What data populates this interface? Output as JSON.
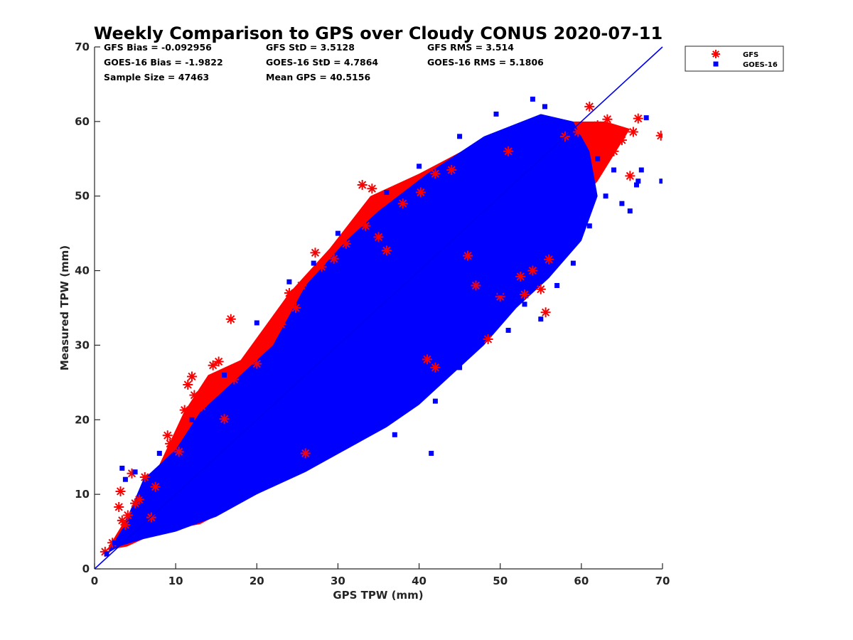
{
  "chart_data": {
    "type": "scatter",
    "title": "Weekly Comparison to GPS over Cloudy CONUS 2020-07-11",
    "xlabel": "GPS TPW (mm)",
    "ylabel": "Measured TPW (mm)",
    "xlim": [
      0,
      70
    ],
    "ylim": [
      0,
      70
    ],
    "x_ticks": [
      "0",
      "10",
      "20",
      "30",
      "40",
      "50",
      "60",
      "70"
    ],
    "y_ticks": [
      "0",
      "10",
      "20",
      "30",
      "40",
      "50",
      "60",
      "70"
    ],
    "grid": false,
    "legend_position": "outside-top-right",
    "reference_line": {
      "label": "",
      "x": [
        0,
        70
      ],
      "y": [
        0,
        70
      ],
      "color": "#0000ee"
    },
    "stats": [
      [
        "GFS Bias = -0.092956",
        "GFS StD = 3.5128",
        "GFS RMS = 3.514"
      ],
      [
        "GOES-16 Bias = -1.9822",
        "GOES-16 StD = 4.7864",
        "GOES-16 RMS = 5.1806"
      ],
      [
        "Sample Size = 47463",
        "Mean GPS = 40.5156",
        ""
      ]
    ],
    "series": [
      {
        "name": "GFS",
        "marker": "asterisk",
        "color": "#ff0000",
        "points": [
          [
            1.3,
            2.3
          ],
          [
            2.2,
            3.5
          ],
          [
            3.0,
            8.3
          ],
          [
            3.2,
            10.4
          ],
          [
            3.4,
            6.5
          ],
          [
            3.8,
            5.9
          ],
          [
            4.1,
            7.2
          ],
          [
            4.6,
            12.8
          ],
          [
            5.0,
            8.8
          ],
          [
            5.5,
            9.3
          ],
          [
            6.2,
            12.3
          ],
          [
            7.0,
            6.9
          ],
          [
            9.0,
            17.9
          ],
          [
            9.3,
            16.8
          ],
          [
            10.4,
            15.7
          ],
          [
            11.1,
            21.3
          ],
          [
            11.5,
            24.7
          ],
          [
            12.0,
            25.8
          ],
          [
            12.3,
            23.3
          ],
          [
            13.2,
            21.8
          ],
          [
            14.0,
            24.8
          ],
          [
            14.6,
            27.3
          ],
          [
            15.3,
            27.8
          ],
          [
            16.0,
            20.1
          ],
          [
            17.2,
            25.4
          ],
          [
            18.0,
            27.0
          ],
          [
            20.0,
            27.5
          ],
          [
            22.0,
            32.3
          ],
          [
            23.0,
            32.8
          ],
          [
            24.0,
            37.0
          ],
          [
            24.4,
            36.0
          ],
          [
            24.8,
            35.0
          ],
          [
            25.5,
            38.0
          ],
          [
            27.2,
            42.4
          ],
          [
            28.0,
            40.5
          ],
          [
            29.5,
            41.6
          ],
          [
            31.0,
            43.6
          ],
          [
            33.0,
            51.5
          ],
          [
            33.4,
            46.0
          ],
          [
            34.2,
            51.0
          ],
          [
            35.0,
            44.5
          ],
          [
            36.0,
            42.7
          ],
          [
            38.0,
            49.0
          ],
          [
            40.2,
            50.5
          ],
          [
            41.0,
            28.1
          ],
          [
            42.0,
            27.0
          ],
          [
            42.0,
            53.0
          ],
          [
            44.0,
            53.5
          ],
          [
            46.0,
            42.0
          ],
          [
            47.0,
            38.0
          ],
          [
            48.5,
            30.8
          ],
          [
            50.0,
            36.5
          ],
          [
            51.0,
            56.0
          ],
          [
            52.5,
            39.2
          ],
          [
            53.0,
            36.8
          ],
          [
            54.0,
            40.0
          ],
          [
            55.0,
            37.5
          ],
          [
            55.6,
            34.4
          ],
          [
            56.0,
            41.5
          ],
          [
            58.0,
            58.0
          ],
          [
            59.6,
            58.6
          ],
          [
            61.0,
            62.0
          ],
          [
            62.0,
            59.5
          ],
          [
            63.2,
            60.3
          ],
          [
            64.0,
            56.0
          ],
          [
            65.0,
            57.5
          ],
          [
            66.0,
            52.7
          ],
          [
            66.4,
            58.6
          ],
          [
            67.0,
            60.4
          ],
          [
            69.8,
            58.1
          ],
          [
            26.0,
            15.5
          ],
          [
            16.8,
            33.5
          ],
          [
            7.5,
            11.0
          ]
        ]
      },
      {
        "name": "GOES-16",
        "marker": "square",
        "color": "#0000ff",
        "points": [
          [
            1.5,
            2.0
          ],
          [
            2.5,
            3.5
          ],
          [
            3.4,
            13.5
          ],
          [
            3.8,
            12.0
          ],
          [
            6.0,
            10.0
          ],
          [
            8.0,
            6.0
          ],
          [
            10.0,
            14.0
          ],
          [
            12.0,
            9.0
          ],
          [
            14.0,
            17.0
          ],
          [
            16.0,
            14.0
          ],
          [
            18.0,
            22.0
          ],
          [
            20.0,
            18.0
          ],
          [
            22.0,
            28.0
          ],
          [
            24.0,
            23.0
          ],
          [
            25.0,
            17.0
          ],
          [
            27.0,
            20.0
          ],
          [
            29.0,
            16.0
          ],
          [
            30.0,
            24.0
          ],
          [
            31.0,
            33.0
          ],
          [
            33.0,
            26.0
          ],
          [
            35.0,
            21.0
          ],
          [
            36.0,
            29.0
          ],
          [
            37.0,
            18.0
          ],
          [
            39.0,
            22.0
          ],
          [
            41.0,
            26.0
          ],
          [
            42.0,
            22.5
          ],
          [
            43.0,
            31.0
          ],
          [
            44.0,
            34.0
          ],
          [
            45.0,
            27.0
          ],
          [
            46.0,
            30.0
          ],
          [
            47.0,
            35.0
          ],
          [
            48.0,
            33.0
          ],
          [
            50.0,
            37.0
          ],
          [
            51.0,
            32.0
          ],
          [
            52.0,
            41.0
          ],
          [
            53.0,
            35.5
          ],
          [
            54.0,
            44.0
          ],
          [
            55.0,
            33.5
          ],
          [
            56.0,
            47.0
          ],
          [
            57.0,
            38.0
          ],
          [
            58.0,
            49.0
          ],
          [
            59.0,
            41.0
          ],
          [
            60.0,
            52.0
          ],
          [
            61.0,
            46.0
          ],
          [
            62.0,
            55.0
          ],
          [
            63.0,
            50.0
          ],
          [
            64.0,
            53.5
          ],
          [
            65.0,
            49.0
          ],
          [
            66.0,
            48.0
          ],
          [
            67.0,
            52.0
          ],
          [
            67.4,
            53.5
          ],
          [
            69.9,
            52.0
          ],
          [
            66.8,
            51.5
          ],
          [
            68.0,
            60.5
          ],
          [
            55.5,
            62.0
          ],
          [
            54.0,
            63.0
          ],
          [
            49.5,
            61.0
          ],
          [
            45.0,
            58.0
          ],
          [
            40.0,
            54.0
          ],
          [
            36.0,
            50.5
          ],
          [
            30.0,
            45.0
          ],
          [
            27.0,
            41.0
          ],
          [
            24.0,
            38.5
          ],
          [
            20.0,
            33.0
          ],
          [
            16.0,
            26.0
          ],
          [
            12.0,
            20.0
          ],
          [
            8.0,
            15.5
          ],
          [
            5.0,
            13.0
          ],
          [
            41.5,
            15.5
          ],
          [
            34.0,
            19.0
          ],
          [
            28.0,
            21.5
          ]
        ]
      }
    ]
  },
  "legend": {
    "items": [
      {
        "label": "GFS",
        "marker": "asterisk",
        "color": "#ff0000"
      },
      {
        "label": "GOES-16",
        "marker": "square",
        "color": "#0000ff"
      }
    ]
  }
}
